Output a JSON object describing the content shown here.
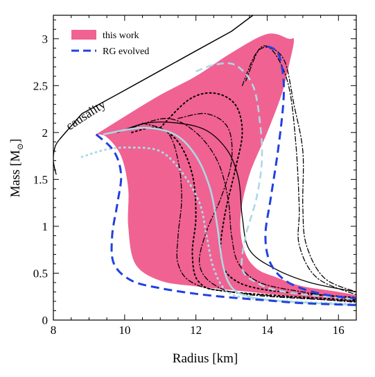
{
  "chart_data": {
    "type": "line",
    "xlabel": "Radius [km]",
    "ylabel_main": "Mass [M",
    "ylabel_sub": "⊙",
    "ylabel_close": "]",
    "xlim": [
      8,
      16.5
    ],
    "ylim": [
      0,
      3.25
    ],
    "x_ticks": [
      "8",
      "10",
      "12",
      "14",
      "16"
    ],
    "y_ticks": [
      "0",
      "0.5",
      "1",
      "1.5",
      "2",
      "2.5",
      "3"
    ],
    "grid": false,
    "legend_position": "top-left",
    "annotation": "causality",
    "colors": {
      "band": "#f06292",
      "rg": "#2040e0",
      "light": "#add8e6",
      "black": "#000000"
    },
    "legend": [
      {
        "label": "this work",
        "kind": "band"
      },
      {
        "label": "RG evolved",
        "kind": "dashed-blue"
      }
    ],
    "band_region": [
      [
        9.2,
        1.98
      ],
      [
        9.5,
        1.95
      ],
      [
        9.9,
        1.75
      ],
      [
        10.1,
        1.4
      ],
      [
        10.1,
        1.0
      ],
      [
        10.3,
        0.6
      ],
      [
        11.0,
        0.42
      ],
      [
        12.0,
        0.36
      ],
      [
        13.0,
        0.32
      ],
      [
        14.0,
        0.28
      ],
      [
        15.0,
        0.24
      ],
      [
        16.0,
        0.21
      ],
      [
        16.5,
        0.2
      ],
      [
        16.5,
        0.26
      ],
      [
        16.0,
        0.3
      ],
      [
        15.0,
        0.36
      ],
      [
        14.3,
        0.45
      ],
      [
        13.7,
        0.55
      ],
      [
        13.35,
        0.75
      ],
      [
        13.25,
        1.1
      ],
      [
        13.5,
        1.55
      ],
      [
        14.0,
        2.0
      ],
      [
        14.4,
        2.4
      ],
      [
        14.6,
        2.7
      ],
      [
        14.75,
        2.98
      ],
      [
        14.6,
        3.0
      ],
      [
        14.0,
        3.05
      ],
      [
        13.0,
        2.85
      ],
      [
        12.0,
        2.6
      ],
      [
        11.0,
        2.4
      ],
      [
        10.0,
        2.17
      ],
      [
        9.2,
        1.98
      ]
    ],
    "causality": [
      [
        8.18,
        1.93
      ],
      [
        8.8,
        2.2
      ],
      [
        10.0,
        2.45
      ],
      [
        11.0,
        2.66
      ],
      [
        12.0,
        2.87
      ],
      [
        13.0,
        3.08
      ],
      [
        13.6,
        3.25
      ]
    ],
    "causality_hook": [
      [
        8.18,
        1.93
      ],
      [
        8.05,
        1.85
      ],
      [
        8.0,
        1.7
      ],
      [
        8.08,
        1.55
      ]
    ],
    "rg_outer": [
      [
        14.0,
        2.92
      ],
      [
        14.3,
        2.85
      ],
      [
        14.45,
        2.6
      ],
      [
        14.45,
        2.3
      ],
      [
        14.3,
        1.8
      ],
      [
        14.1,
        1.3
      ],
      [
        13.95,
        0.9
      ],
      [
        14.1,
        0.6
      ],
      [
        14.6,
        0.4
      ],
      [
        15.5,
        0.28
      ],
      [
        16.5,
        0.23
      ]
    ],
    "rg_inner": [
      [
        9.2,
        1.98
      ],
      [
        9.7,
        1.8
      ],
      [
        9.9,
        1.55
      ],
      [
        9.8,
        1.25
      ],
      [
        9.65,
        0.9
      ],
      [
        9.7,
        0.6
      ],
      [
        10.2,
        0.42
      ],
      [
        11.0,
        0.34
      ],
      [
        12.0,
        0.28
      ],
      [
        13.0,
        0.24
      ],
      [
        14.0,
        0.21
      ],
      [
        15.0,
        0.18
      ],
      [
        16.5,
        0.16
      ]
    ],
    "light_solid": [
      [
        9.4,
        1.98
      ],
      [
        10.5,
        2.05
      ],
      [
        11.4,
        1.98
      ],
      [
        12.0,
        1.75
      ],
      [
        12.4,
        1.4
      ],
      [
        12.6,
        1.0
      ],
      [
        12.75,
        0.6
      ],
      [
        13.0,
        0.35
      ],
      [
        13.5,
        0.25
      ],
      [
        14.5,
        0.2
      ],
      [
        16.5,
        0.16
      ]
    ],
    "light_dashed": [
      [
        12.0,
        2.65
      ],
      [
        12.5,
        2.72
      ],
      [
        13.1,
        2.72
      ],
      [
        13.6,
        2.5
      ],
      [
        13.8,
        2.1
      ],
      [
        13.85,
        1.7
      ],
      [
        13.7,
        1.3
      ],
      [
        13.4,
        0.9
      ],
      [
        13.3,
        0.55
      ],
      [
        13.7,
        0.4
      ],
      [
        14.5,
        0.3
      ],
      [
        16.5,
        0.22
      ]
    ],
    "light_dotted": [
      [
        8.8,
        1.74
      ],
      [
        9.5,
        1.82
      ],
      [
        10.2,
        1.84
      ],
      [
        11.0,
        1.8
      ],
      [
        11.6,
        1.58
      ],
      [
        12.1,
        1.25
      ],
      [
        12.3,
        0.9
      ],
      [
        12.5,
        0.55
      ],
      [
        12.9,
        0.3
      ],
      [
        13.8,
        0.22
      ],
      [
        16.5,
        0.17
      ]
    ],
    "black_curves": [
      {
        "style": "solid",
        "points": [
          [
            9.8,
            2.0
          ],
          [
            10.6,
            2.1
          ],
          [
            11.5,
            2.1
          ],
          [
            12.3,
            2.02
          ],
          [
            12.9,
            1.8
          ],
          [
            13.2,
            1.5
          ],
          [
            13.3,
            1.1
          ],
          [
            13.5,
            0.75
          ],
          [
            14.2,
            0.55
          ],
          [
            15.2,
            0.4
          ],
          [
            16.5,
            0.3
          ]
        ]
      },
      {
        "style": "dotted",
        "points": [
          [
            11.0,
            2.05
          ],
          [
            11.8,
            2.35
          ],
          [
            12.5,
            2.42
          ],
          [
            13.1,
            2.3
          ],
          [
            13.3,
            2.0
          ],
          [
            13.1,
            1.6
          ],
          [
            12.8,
            1.1
          ],
          [
            12.7,
            0.7
          ],
          [
            13.0,
            0.45
          ],
          [
            14.0,
            0.32
          ],
          [
            16.5,
            0.24
          ]
        ]
      },
      {
        "style": "dashdot",
        "points": [
          [
            10.2,
            2.05
          ],
          [
            11.2,
            2.15
          ],
          [
            12.0,
            2.0
          ],
          [
            12.6,
            1.7
          ],
          [
            12.9,
            1.3
          ],
          [
            13.0,
            0.9
          ],
          [
            13.2,
            0.6
          ],
          [
            13.8,
            0.4
          ],
          [
            15.0,
            0.3
          ],
          [
            16.5,
            0.22
          ]
        ]
      },
      {
        "style": "dashdot",
        "points": [
          [
            13.3,
            2.5
          ],
          [
            13.7,
            2.85
          ],
          [
            14.1,
            2.9
          ],
          [
            14.5,
            2.75
          ],
          [
            14.75,
            2.3
          ],
          [
            15.0,
            1.8
          ],
          [
            15.0,
            1.2
          ],
          [
            15.1,
            0.8
          ],
          [
            15.6,
            0.45
          ],
          [
            16.5,
            0.3
          ]
        ]
      },
      {
        "style": "dashdot",
        "points": [
          [
            13.4,
            2.55
          ],
          [
            13.8,
            2.9
          ],
          [
            14.2,
            2.85
          ],
          [
            14.6,
            2.5
          ],
          [
            14.8,
            1.9
          ],
          [
            14.9,
            1.2
          ],
          [
            14.9,
            0.8
          ],
          [
            15.4,
            0.45
          ],
          [
            16.5,
            0.27
          ]
        ]
      },
      {
        "style": "dashdot",
        "points": [
          [
            11.5,
            2.15
          ],
          [
            12.3,
            2.2
          ],
          [
            12.9,
            2.05
          ],
          [
            13.0,
            1.7
          ],
          [
            12.7,
            1.3
          ],
          [
            12.3,
            0.95
          ],
          [
            12.1,
            0.6
          ],
          [
            12.5,
            0.38
          ],
          [
            13.5,
            0.27
          ],
          [
            16.5,
            0.2
          ]
        ]
      },
      {
        "style": "dashdot",
        "points": [
          [
            10.5,
            2.1
          ],
          [
            11.2,
            2.0
          ],
          [
            11.5,
            1.7
          ],
          [
            11.6,
            1.3
          ],
          [
            11.5,
            0.9
          ],
          [
            11.5,
            0.6
          ],
          [
            11.9,
            0.4
          ],
          [
            13.0,
            0.3
          ],
          [
            16.5,
            0.19
          ]
        ]
      },
      {
        "style": "dotted",
        "points": [
          [
            10.2,
            2.0
          ],
          [
            10.9,
            2.05
          ],
          [
            11.5,
            1.9
          ],
          [
            11.9,
            1.55
          ],
          [
            12.0,
            1.1
          ],
          [
            11.9,
            0.7
          ],
          [
            12.1,
            0.4
          ],
          [
            13.0,
            0.3
          ],
          [
            16.5,
            0.21
          ]
        ]
      }
    ]
  }
}
